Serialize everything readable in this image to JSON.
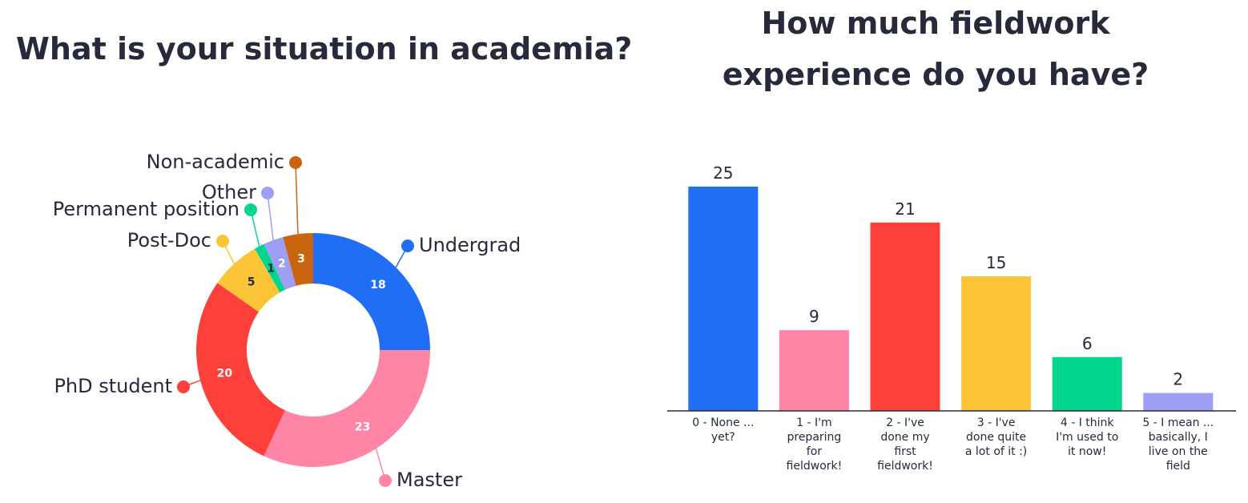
{
  "chart_data": [
    {
      "type": "donut",
      "title": "What is your situation in academia?",
      "categories": [
        "Undergrad",
        "Master",
        "PhD student",
        "Post-Doc",
        "Permanent position",
        "Other",
        "Non-academic"
      ],
      "values": [
        18,
        23,
        20,
        5,
        1,
        2,
        3
      ],
      "colors": [
        "#1f6ef5",
        "#ff85a6",
        "#ff403a",
        "#fcc537",
        "#00d68f",
        "#9e9ef5",
        "#c8650e"
      ]
    },
    {
      "type": "bar",
      "title": "How much fieldwork\nexperience do you have?",
      "categories": [
        "0 - None ...\nyet?",
        "1 - I'm\npreparing\nfor\nfieldwork!",
        "2 - I've\ndone my\nfirst\nfieldwork!",
        "3 - I've\ndone quite\na lot of it :)",
        "4 - I think\nI'm used to\nit now!",
        "5 - I mean ...\nbasically, I\nlive on the\nfield"
      ],
      "values": [
        25,
        9,
        21,
        15,
        6,
        2
      ],
      "colors": [
        "#1f6ef5",
        "#ff85a6",
        "#ff403a",
        "#fcc537",
        "#00d68f",
        "#9e9ef5"
      ],
      "ylim": [
        0,
        25
      ]
    }
  ]
}
